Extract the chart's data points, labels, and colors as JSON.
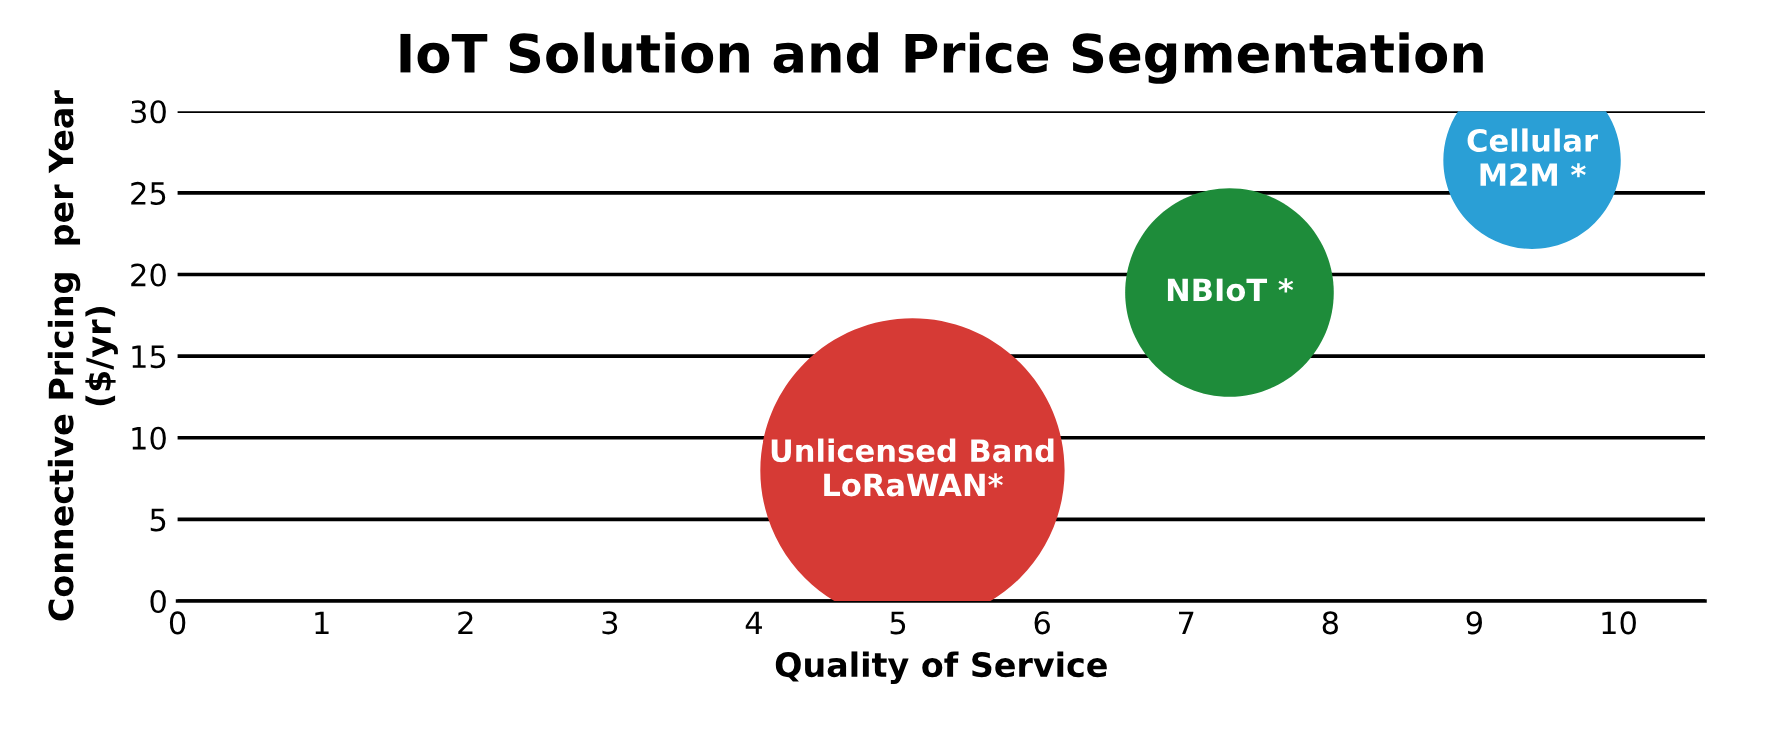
{
  "chart_data": {
    "type": "bubble",
    "title": "IoT Solution and Price Segmentation",
    "xlabel": "Quality of Service",
    "ylabel": "Connective Pricing  per Year\n($/yr)",
    "xlim": [
      0,
      10.6
    ],
    "xticks": [
      0,
      1,
      2,
      3,
      4,
      5,
      6,
      7,
      8,
      9,
      10
    ],
    "ylim": [
      0,
      30
    ],
    "yticks": [
      0,
      5,
      10,
      15,
      20,
      25,
      30
    ],
    "grid": "y",
    "legend": false,
    "series": [
      {
        "name": "Unlicensed Band\nLoRaWAN*",
        "color": "#d63a35",
        "x": [
          5.1
        ],
        "values": [
          8
        ],
        "sizes": [
          1
        ]
      },
      {
        "name": "NBIoT *",
        "color": "#1e8c3a",
        "x": [
          7.3
        ],
        "values": [
          18.9
        ],
        "sizes": [
          0.47
        ]
      },
      {
        "name": "Cellular\nM2M *",
        "color": "#2a9fd6",
        "x": [
          9.4
        ],
        "values": [
          27
        ],
        "sizes": [
          0.34
        ]
      }
    ]
  }
}
